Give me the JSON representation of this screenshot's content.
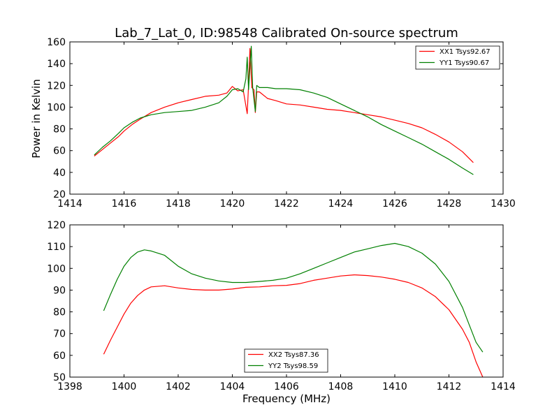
{
  "chart_data": [
    {
      "type": "line",
      "title": "Lab_7_Lat_0, ID:98548 Calibrated On-source spectrum",
      "xlabel": "",
      "ylabel": "Power in Kelvin",
      "xlim": [
        1414,
        1430
      ],
      "ylim": [
        20,
        160
      ],
      "xticks": [
        1414,
        1416,
        1418,
        1420,
        1422,
        1424,
        1426,
        1428,
        1430
      ],
      "yticks": [
        20,
        40,
        60,
        80,
        100,
        120,
        140,
        160
      ],
      "grid": false,
      "legend_position": "top-right",
      "series": [
        {
          "name": "XX1 Tsys92.67",
          "color": "#ff0000",
          "x": [
            1414.9,
            1415.2,
            1415.5,
            1415.8,
            1416.0,
            1416.3,
            1416.6,
            1417.0,
            1417.5,
            1418.0,
            1418.5,
            1419.0,
            1419.5,
            1419.8,
            1420.0,
            1420.2,
            1420.4,
            1420.55,
            1420.6,
            1420.65,
            1420.72,
            1420.8,
            1420.85,
            1420.9,
            1421.0,
            1421.3,
            1421.6,
            1422.0,
            1422.5,
            1423.0,
            1423.5,
            1424.0,
            1424.5,
            1425.0,
            1425.5,
            1426.0,
            1426.5,
            1427.0,
            1427.5,
            1428.0,
            1428.5,
            1428.9
          ],
          "y": [
            55,
            61,
            67,
            73,
            78,
            84,
            89,
            95,
            100,
            104,
            107,
            110,
            111,
            113,
            119,
            115,
            116,
            94,
            120,
            154,
            118,
            116,
            95,
            114,
            114,
            108,
            106,
            103,
            102,
            100,
            98,
            97,
            95,
            93,
            91,
            88,
            85,
            81,
            75,
            68,
            59,
            49
          ]
        },
        {
          "name": "YY1 Tsys90.67",
          "color": "#008000",
          "x": [
            1414.9,
            1415.2,
            1415.5,
            1415.8,
            1416.0,
            1416.3,
            1416.6,
            1417.0,
            1417.5,
            1418.0,
            1418.5,
            1419.0,
            1419.5,
            1419.8,
            1420.0,
            1420.2,
            1420.4,
            1420.5,
            1420.55,
            1420.6,
            1420.7,
            1420.75,
            1420.85,
            1420.9,
            1421.0,
            1421.3,
            1421.6,
            1422.0,
            1422.5,
            1423.0,
            1423.5,
            1424.0,
            1424.5,
            1425.0,
            1425.5,
            1426.0,
            1426.5,
            1427.0,
            1427.5,
            1428.0,
            1428.5,
            1428.9
          ],
          "y": [
            56,
            63,
            69,
            76,
            81,
            86,
            90,
            93,
            95,
            96,
            97,
            100,
            104,
            110,
            116,
            117,
            114,
            126,
            146,
            116,
            156,
            118,
            96,
            120,
            118,
            118,
            117,
            117,
            116,
            113,
            109,
            103,
            97,
            91,
            84,
            78,
            72,
            66,
            59,
            52,
            44,
            38
          ]
        }
      ]
    },
    {
      "type": "line",
      "title": "",
      "xlabel": "Frequency (MHz)",
      "ylabel": "",
      "xlim": [
        1398,
        1414
      ],
      "ylim": [
        50,
        120
      ],
      "xticks": [
        1398,
        1400,
        1402,
        1404,
        1406,
        1408,
        1410,
        1412,
        1414
      ],
      "yticks": [
        50,
        60,
        70,
        80,
        90,
        100,
        110,
        120
      ],
      "grid": false,
      "legend_position": "lower-center",
      "series": [
        {
          "name": "XX2 Tsys87.36",
          "color": "#ff0000",
          "x": [
            1399.25,
            1399.5,
            1399.75,
            1400.0,
            1400.25,
            1400.5,
            1400.75,
            1401.0,
            1401.5,
            1402.0,
            1402.5,
            1403.0,
            1403.5,
            1404.0,
            1404.5,
            1405.0,
            1405.5,
            1406.0,
            1406.5,
            1407.0,
            1407.5,
            1408.0,
            1408.5,
            1409.0,
            1409.5,
            1410.0,
            1410.5,
            1411.0,
            1411.5,
            1412.0,
            1412.5,
            1412.75,
            1413.0,
            1413.25
          ],
          "y": [
            60.5,
            67,
            73,
            79,
            84,
            87.5,
            90,
            91.5,
            92,
            91,
            90.3,
            90,
            90,
            90.5,
            91.3,
            91.5,
            92,
            92.2,
            93,
            94.5,
            95.5,
            96.5,
            97,
            96.7,
            96,
            95,
            93.5,
            91,
            87,
            81,
            72,
            66,
            57,
            50
          ]
        },
        {
          "name": "YY2 Tsys98.59",
          "color": "#008000",
          "x": [
            1399.25,
            1399.5,
            1399.75,
            1400.0,
            1400.25,
            1400.5,
            1400.75,
            1401.0,
            1401.5,
            1402.0,
            1402.5,
            1403.0,
            1403.5,
            1404.0,
            1404.5,
            1405.0,
            1405.5,
            1406.0,
            1406.5,
            1407.0,
            1407.5,
            1408.0,
            1408.5,
            1409.0,
            1409.5,
            1410.0,
            1410.5,
            1411.0,
            1411.5,
            1412.0,
            1412.5,
            1412.75,
            1413.0,
            1413.25
          ],
          "y": [
            80.5,
            88,
            95,
            101,
            105,
            107.5,
            108.5,
            108,
            106,
            101,
            97.5,
            95.5,
            94.2,
            93.5,
            93.5,
            94,
            94.5,
            95.5,
            97.5,
            100,
            102.5,
            105,
            107.5,
            109,
            110.5,
            111.5,
            110,
            107,
            102,
            94,
            82,
            74,
            66,
            61.5
          ]
        }
      ]
    }
  ]
}
